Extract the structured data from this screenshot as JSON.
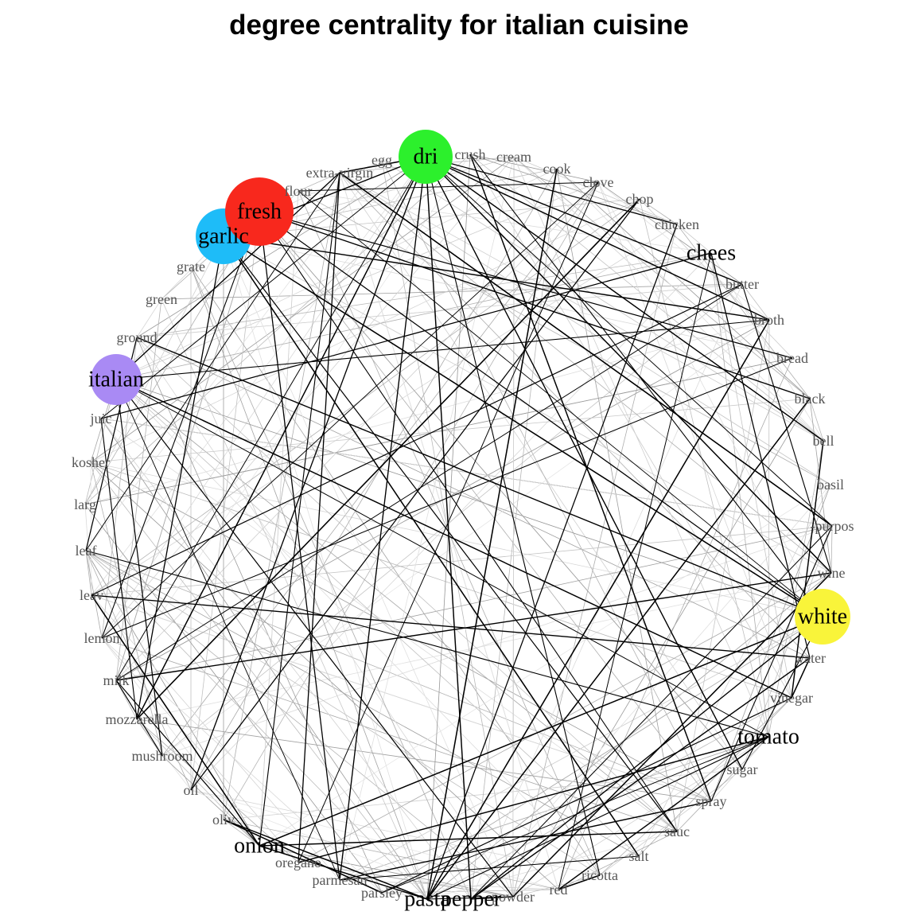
{
  "title": "degree centrality for italian cuisine",
  "colors": {
    "dri": "#2cf02c",
    "fresh": "#f8281d",
    "garlic": "#1ebcf8",
    "italian": "#a98af4",
    "white": "#f9f43a"
  },
  "nodes": [
    {
      "label": "dri",
      "highlight": "dri"
    },
    {
      "label": "crush"
    },
    {
      "label": "cream"
    },
    {
      "label": "cook"
    },
    {
      "label": "clove"
    },
    {
      "label": "chop"
    },
    {
      "label": "chicken"
    },
    {
      "label": "chees",
      "major": true
    },
    {
      "label": "butter"
    },
    {
      "label": "broth"
    },
    {
      "label": "bread"
    },
    {
      "label": "black"
    },
    {
      "label": "bell"
    },
    {
      "label": "basil"
    },
    {
      "label": "-purpos"
    },
    {
      "label": "wine"
    },
    {
      "label": "white",
      "highlight": "white"
    },
    {
      "label": "water"
    },
    {
      "label": "vinegar"
    },
    {
      "label": "tomato",
      "major": true
    },
    {
      "label": "sugar"
    },
    {
      "label": "spray"
    },
    {
      "label": "sauc"
    },
    {
      "label": "salt"
    },
    {
      "label": "ricotta"
    },
    {
      "label": "red"
    },
    {
      "label": "powder"
    },
    {
      "label": "pepper",
      "major": true
    },
    {
      "label": "pasta",
      "major": true
    },
    {
      "label": "parsley"
    },
    {
      "label": "parmesan"
    },
    {
      "label": "oregano"
    },
    {
      "label": "onion",
      "major": true
    },
    {
      "label": "oliv"
    },
    {
      "label": "oil"
    },
    {
      "label": "mushroom"
    },
    {
      "label": "mozzarella"
    },
    {
      "label": "milk"
    },
    {
      "label": "lemon"
    },
    {
      "label": "leav"
    },
    {
      "label": "leaf"
    },
    {
      "label": "larg"
    },
    {
      "label": "kosher"
    },
    {
      "label": "juic"
    },
    {
      "label": "italian",
      "highlight": "italian"
    },
    {
      "label": "ground"
    },
    {
      "label": "green"
    },
    {
      "label": "grate"
    },
    {
      "label": "garlic",
      "highlight": "garlic"
    },
    {
      "label": "fresh",
      "highlight": "fresh"
    },
    {
      "label": "flour"
    },
    {
      "label": "extra-virgin"
    },
    {
      "label": "egg"
    }
  ]
}
